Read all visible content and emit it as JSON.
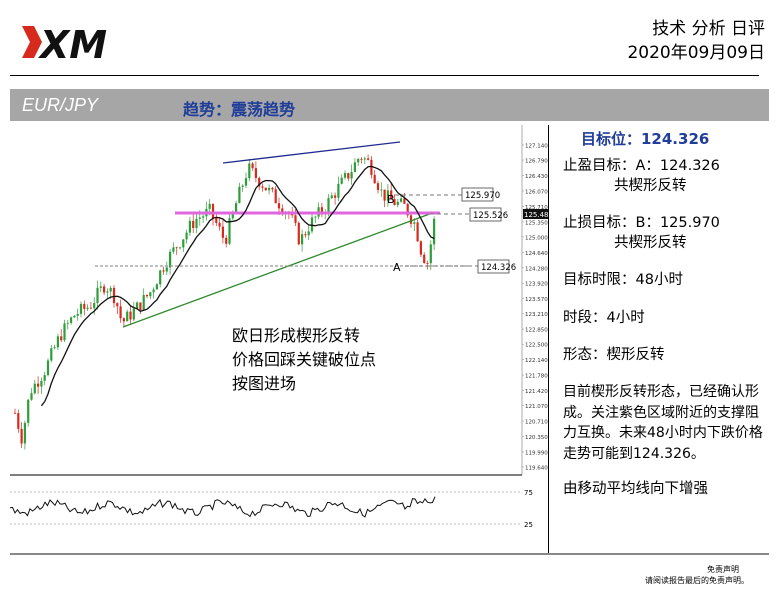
{
  "header": {
    "logo_text": "XM",
    "title": "技术 分析 日评",
    "date": "2020年09月09日"
  },
  "bar": {
    "pair": "EUR/JPY",
    "trend": "趋势：震荡趋势"
  },
  "side": {
    "target": "目标位：124.326",
    "tp_label": "止盈目标：A：124.326",
    "tp_pattern": "共楔形反转",
    "sl_label": "止损目标：B：125.970",
    "sl_pattern": "共楔形反转",
    "time_limit": "目标时限：48小时",
    "period": "时段：4小时",
    "shape": "形态：楔形反转",
    "desc": "目前楔形反转形态，已经确认形成。关注紫色区域附近的支撑阻力互换。未来48小时内下跌价格走势可能到124.326。",
    "ma_note": "由移动平均线向下增强"
  },
  "chart_annotation": [
    "欧日形成楔形反转",
    "价格回踩关键破位点",
    "按图进场"
  ],
  "footer": {
    "disclaimer_title": "免责声明",
    "disclaimer_text": "请阅读报告最后的免责声明。"
  },
  "colors": {
    "up": "#2e9e3a",
    "down": "#d62a1e",
    "resistance": "#1f2a8f",
    "support": "#2b8a2b",
    "pivot_zone": "#e066e0",
    "ma": "#111111"
  },
  "chart_data": {
    "type": "candlestick",
    "y_ticks": [
      "127.140",
      "126.790",
      "126.430",
      "126.070",
      "125.710",
      "125.350",
      "125.000",
      "124.640",
      "124.280",
      "123.920",
      "123.570",
      "123.210",
      "122.850",
      "122.500",
      "122.140",
      "121.780",
      "121.420",
      "121.070",
      "120.710",
      "120.350",
      "119.990",
      "119.640"
    ],
    "ylim": [
      119.64,
      127.14
    ],
    "osc_ticks": [
      "75",
      "25"
    ],
    "price_labels": [
      {
        "label": "125.970",
        "value": 125.97
      },
      {
        "label": "125.526",
        "value": 125.526
      },
      {
        "label": "124.326",
        "value": 124.326
      }
    ],
    "point_labels": [
      "A",
      "B"
    ],
    "current_price": "125.48",
    "lines": [
      "upper resistance trendline",
      "rising support trendline",
      "pivot zone 125.526",
      "horizontal support 124.326"
    ]
  }
}
